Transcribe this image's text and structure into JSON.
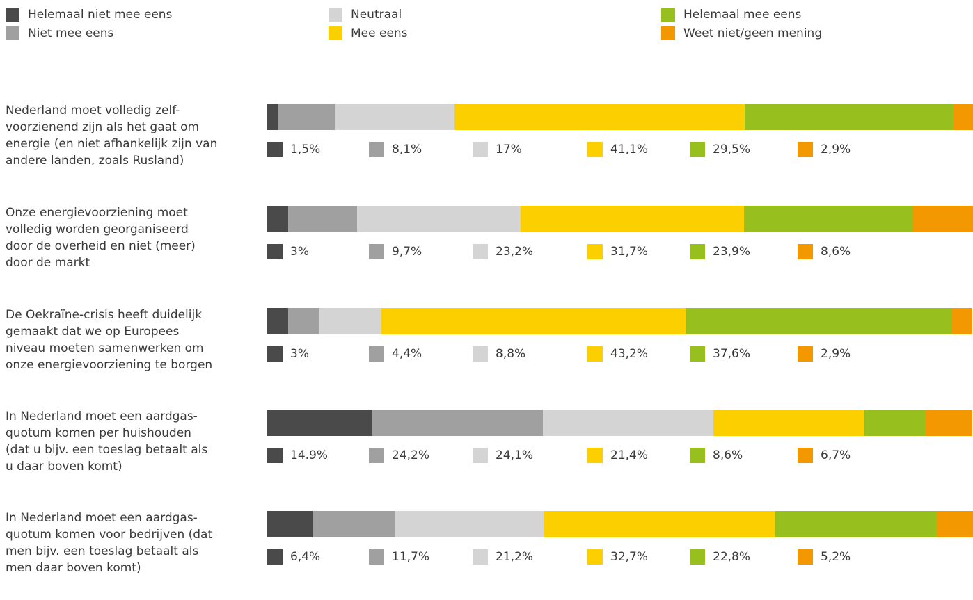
{
  "chart_data": {
    "type": "bar",
    "orientation": "horizontal",
    "stacked": true,
    "xlim": [
      0,
      100
    ],
    "legend_position": "top",
    "series": [
      {
        "name": "Helemaal niet mee eens",
        "color": "#4a4a4a"
      },
      {
        "name": "Niet mee eens",
        "color": "#a0a0a0"
      },
      {
        "name": "Neutraal",
        "color": "#d4d4d4"
      },
      {
        "name": "Mee eens",
        "color": "#fccf00"
      },
      {
        "name": "Helemaal mee eens",
        "color": "#97bf1e"
      },
      {
        "name": "Weet niet/geen mening",
        "color": "#f39800"
      }
    ],
    "rows": [
      {
        "label": "Nederland moet volledig zelf-voorzienend zijn als het gaat om energie (en niet afhankelijk zijn van andere landen, zoals Rusland)",
        "label_lines": [
          "Nederland moet volledig zelf-",
          "voorzienend zijn als het gaat om",
          "energie (en niet afhankelijk zijn van",
          "andere landen, zoals Rusland)"
        ],
        "values": [
          1.5,
          8.1,
          17,
          41.1,
          29.5,
          2.9
        ],
        "value_labels": [
          "1,5%",
          "8,1%",
          "17%",
          "41,1%",
          "29,5%",
          "2,9%"
        ]
      },
      {
        "label": "Onze energievoorziening moet volledig worden georganiseerd door de overheid en niet (meer) door de markt",
        "label_lines": [
          "Onze energievoorziening moet",
          "volledig worden georganiseerd",
          "door de overheid en niet (meer)",
          "door de markt"
        ],
        "values": [
          3,
          9.7,
          23.2,
          31.7,
          23.9,
          8.6
        ],
        "value_labels": [
          "3%",
          "9,7%",
          "23,2%",
          "31,7%",
          "23,9%",
          "8,6%"
        ]
      },
      {
        "label": "De Oekraïne-crisis heeft duidelijk gemaakt dat we op Europees niveau moeten samenwerken om onze energievoorziening te borgen",
        "label_lines": [
          "De Oekraïne-crisis heeft duidelijk",
          "gemaakt dat we op Europees",
          "niveau moeten samenwerken om",
          "onze energievoorziening te borgen"
        ],
        "values": [
          3,
          4.4,
          8.8,
          43.2,
          37.6,
          2.9
        ],
        "value_labels": [
          "3%",
          "4,4%",
          "8,8%",
          "43,2%",
          "37,6%",
          "2,9%"
        ]
      },
      {
        "label": "In Nederland moet een aardgas-quotum komen per huishouden (dat u bijv. een toeslag betaalt als u daar boven komt)",
        "label_lines": [
          "In Nederland moet een aardgas-",
          "quotum komen per huishouden",
          "(dat u bijv. een toeslag betaalt als",
          "u daar boven komt)"
        ],
        "values": [
          14.9,
          24.2,
          24.1,
          21.4,
          8.6,
          6.7
        ],
        "value_labels": [
          "14.9%",
          "24,2%",
          "24,1%",
          "21,4%",
          "8,6%",
          "6,7%"
        ]
      },
      {
        "label": "In Nederland moet een aardgas-quotum komen voor bedrijven (dat men bijv. een toeslag betaalt als men daar boven komt)",
        "label_lines": [
          "In Nederland moet een aardgas-",
          "quotum komen voor bedrijven (dat",
          "men bijv. een toeslag betaalt als",
          "men daar boven komt)"
        ],
        "values": [
          6.4,
          11.7,
          21.2,
          32.7,
          22.8,
          5.2
        ],
        "value_labels": [
          "6,4%",
          "11,7%",
          "21,2%",
          "32,7%",
          "22,8%",
          "5,2%"
        ]
      }
    ]
  }
}
